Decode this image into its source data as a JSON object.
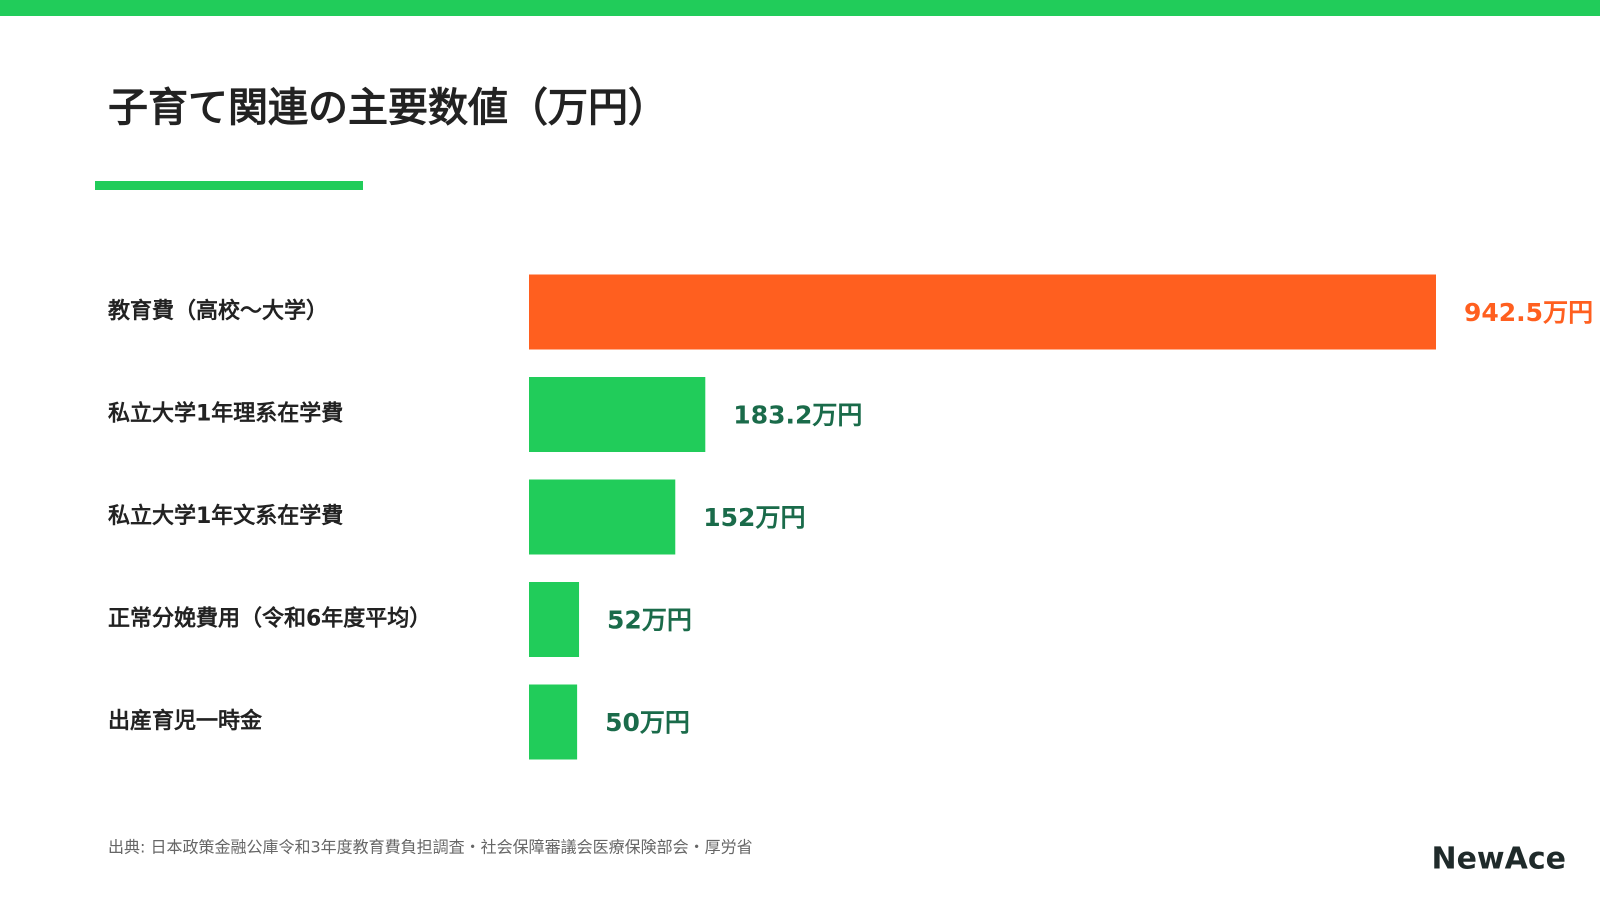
{
  "chart_data": {
    "type": "hbar",
    "title": "子育て関連の主要数値（万円）",
    "categories": [
      "教育費（高校〜大学）",
      "私立大学1年理系在学費",
      "私立大学1年文系在学費",
      "正常分娩費用（令和6年度平均）",
      "出産育児一時金"
    ],
    "values": [
      942.5,
      183.2,
      152,
      52,
      50
    ],
    "value_labels": [
      "942.5万円",
      "183.2万円",
      "152万円",
      "52万円",
      "50万円"
    ],
    "colors": [
      "#ff5f1f",
      "#21cc5a",
      "#21cc5a",
      "#21cc5a",
      "#21cc5a"
    ],
    "label_colors": [
      "#ff5f1f",
      "#1a6b4a",
      "#1a6b4a",
      "#1a6b4a",
      "#1a6b4a"
    ],
    "source": "出典: 日本政策金融公庫令和3年度教育費負担調査・社会保障審議会医療保険部会・厚労省",
    "logo": "NewAce"
  }
}
